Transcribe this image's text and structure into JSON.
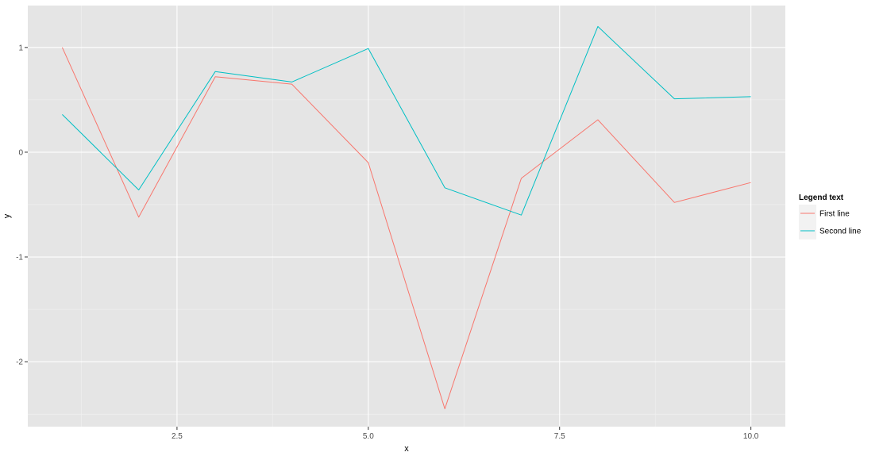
{
  "chart_data": {
    "type": "line",
    "xlabel": "x",
    "ylabel": "y",
    "xlim": [
      0.55,
      10.45
    ],
    "ylim": [
      -2.62,
      1.4
    ],
    "xticks": [
      2.5,
      5.0,
      7.5,
      10.0
    ],
    "xtick_labels": [
      "2.5",
      "5.0",
      "7.5",
      "10.0"
    ],
    "yticks": [
      -2,
      -1,
      0,
      1
    ],
    "ytick_labels": [
      "-2",
      "-1",
      "0",
      "1"
    ],
    "grid": true,
    "legend": {
      "title": "Legend text",
      "position": "right"
    },
    "x": [
      1,
      2,
      3,
      4,
      5,
      6,
      7,
      8,
      9,
      10
    ],
    "series": [
      {
        "name": "First line",
        "color": "#F8766D",
        "values": [
          1.0,
          -0.62,
          0.72,
          0.65,
          -0.1,
          -2.45,
          -0.25,
          0.31,
          -0.48,
          -0.29
        ]
      },
      {
        "name": "Second line",
        "color": "#00BFC4",
        "values": [
          0.36,
          -0.36,
          0.77,
          0.67,
          0.99,
          -0.34,
          -0.6,
          1.2,
          0.51,
          0.53
        ]
      }
    ]
  },
  "colors": {
    "panel_background": "#E5E5E5",
    "grid_major": "#FFFFFF",
    "grid_minor": "#F2F2F2",
    "legend_key_background": "#F2F2F2"
  }
}
